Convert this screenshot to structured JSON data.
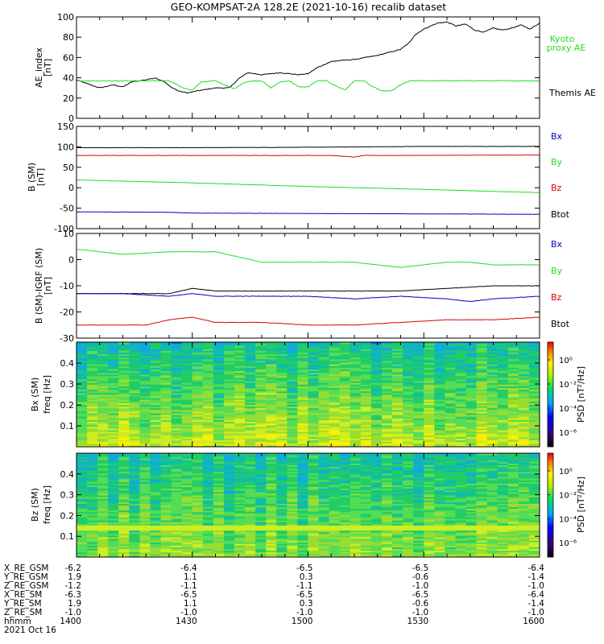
{
  "title": "GEO-KOMPSAT-2A 128.2E (2021-10-16) recalib dataset",
  "colors": {
    "black": "#000000",
    "green": "#22dd22",
    "red": "#dd0000",
    "blue": "#0000cc"
  },
  "chart_data": [
    {
      "type": "line",
      "ylabel": "AE_index",
      "yunit": "[nT]",
      "ylim": [
        0,
        100
      ],
      "yticks": [
        "0",
        "20",
        "40",
        "60",
        "80",
        "100"
      ],
      "legend": [
        {
          "label": "Kyoto",
          "color": "green"
        },
        {
          "label": "proxy AE",
          "color": "green"
        },
        {
          "label": "Themis AE",
          "color": "black"
        }
      ],
      "series": [
        {
          "name": "Themis AE",
          "color": "black",
          "x": [
            0,
            3,
            5,
            8,
            10,
            12,
            15,
            17,
            19,
            20,
            22,
            24,
            26,
            30,
            33,
            35,
            37,
            40,
            44,
            48,
            50,
            52,
            55,
            57,
            60,
            65,
            70,
            72,
            73,
            75,
            78,
            80,
            82,
            84,
            86,
            88,
            90,
            92,
            94,
            96,
            98,
            100
          ],
          "y": [
            38,
            33,
            30,
            33,
            31,
            36,
            38,
            40,
            36,
            32,
            27,
            25,
            27,
            30,
            30,
            39,
            45,
            43,
            45,
            43,
            44,
            50,
            56,
            57,
            58,
            62,
            68,
            75,
            82,
            88,
            94,
            95,
            91,
            93,
            87,
            85,
            89,
            87,
            89,
            92,
            88,
            94
          ]
        },
        {
          "name": "Kyoto proxy AE",
          "color": "green",
          "x": [
            0,
            20,
            23,
            25,
            27,
            30,
            32,
            34,
            36,
            38,
            40,
            42,
            44,
            46,
            48,
            50,
            52,
            54,
            56,
            58,
            60,
            62,
            64,
            66,
            68,
            70,
            72,
            75,
            78,
            80,
            85,
            90,
            95,
            100
          ],
          "y": [
            37,
            37,
            30,
            28,
            36,
            37,
            33,
            29,
            35,
            37,
            37,
            30,
            36,
            37,
            31,
            31,
            37,
            37,
            32,
            28,
            37,
            37,
            31,
            27,
            27,
            33,
            37,
            37,
            37,
            37,
            37,
            37,
            37,
            37
          ]
        }
      ]
    },
    {
      "type": "line",
      "ylabel": "B (SM)",
      "yunit": "[nT]",
      "ylim": [
        -100,
        150
      ],
      "yticks": [
        "-100",
        "-50",
        "0",
        "50",
        "100",
        "150"
      ],
      "legend": [
        {
          "label": "Bx",
          "color": "blue"
        },
        {
          "label": "By",
          "color": "green"
        },
        {
          "label": "Bz",
          "color": "red"
        },
        {
          "label": "Btot",
          "color": "black"
        }
      ],
      "series": [
        {
          "name": "Btot",
          "color": "black",
          "x": [
            0,
            25,
            50,
            75,
            100
          ],
          "y": [
            98,
            98,
            99,
            101,
            101
          ]
        },
        {
          "name": "Bz",
          "color": "red",
          "x": [
            0,
            40,
            55,
            60,
            62,
            70,
            100
          ],
          "y": [
            79,
            79,
            79,
            75,
            79,
            79,
            80
          ]
        },
        {
          "name": "By",
          "color": "green",
          "x": [
            0,
            25,
            50,
            75,
            100
          ],
          "y": [
            19,
            12,
            3,
            -4,
            -12
          ]
        },
        {
          "name": "Bx",
          "color": "blue",
          "x": [
            0,
            20,
            25,
            50,
            75,
            100
          ],
          "y": [
            -59,
            -60,
            -62,
            -63,
            -64,
            -65
          ]
        }
      ]
    },
    {
      "type": "line",
      "ylabel": "B (SM)-IGRF (SM)",
      "yunit": "[nT]",
      "ylim": [
        -30,
        10
      ],
      "yticks": [
        "-30",
        "-20",
        "-10",
        "0",
        "10"
      ],
      "legend": [
        {
          "label": "Bx",
          "color": "blue"
        },
        {
          "label": "By",
          "color": "green"
        },
        {
          "label": "Bz",
          "color": "red"
        },
        {
          "label": "Btot",
          "color": "black"
        }
      ],
      "series": [
        {
          "name": "By",
          "color": "green",
          "x": [
            0,
            10,
            20,
            30,
            35,
            40,
            45,
            50,
            55,
            60,
            65,
            70,
            75,
            80,
            85,
            90,
            100
          ],
          "y": [
            4,
            2,
            3,
            3,
            1,
            -1,
            -1,
            -1,
            -1,
            -1,
            -2,
            -3,
            -2,
            -1,
            -1,
            -2,
            -2
          ]
        },
        {
          "name": "Btot",
          "color": "black",
          "x": [
            0,
            10,
            15,
            20,
            25,
            30,
            40,
            50,
            60,
            70,
            80,
            90,
            100
          ],
          "y": [
            -13,
            -13,
            -13,
            -13,
            -11,
            -12,
            -12,
            -12,
            -12,
            -12,
            -11,
            -10,
            -10
          ]
        },
        {
          "name": "Bx",
          "color": "blue",
          "x": [
            0,
            10,
            20,
            25,
            30,
            40,
            50,
            60,
            70,
            80,
            85,
            90,
            100
          ],
          "y": [
            -13,
            -13,
            -14,
            -13,
            -14,
            -14,
            -14,
            -15,
            -14,
            -15,
            -16,
            -15,
            -14
          ]
        },
        {
          "name": "Bz",
          "color": "red",
          "x": [
            0,
            10,
            15,
            20,
            25,
            30,
            40,
            50,
            60,
            70,
            80,
            90,
            100
          ],
          "y": [
            -25,
            -25,
            -25,
            -23,
            -22,
            -24,
            -24,
            -25,
            -25,
            -24,
            -23,
            -23,
            -22
          ]
        }
      ]
    },
    {
      "type": "heatmap",
      "ylabel": "Bx (SM)",
      "yunit": "freq [Hz]",
      "ylim": [
        0,
        0.5
      ],
      "yticks": [
        "0.1",
        "0.2",
        "0.3",
        "0.4"
      ],
      "colorbar": {
        "label": "PSD [nT²/Hz]",
        "ticks": [
          "10⁰",
          "10⁻²",
          "10⁻⁴",
          "10⁻⁶"
        ]
      }
    },
    {
      "type": "heatmap",
      "ylabel": "Bz (SM)",
      "yunit": "freq [Hz]",
      "ylim": [
        0,
        0.5
      ],
      "yticks": [
        "0.1",
        "0.2",
        "0.3",
        "0.4"
      ],
      "colorbar": {
        "label": "PSD [nT²/Hz]",
        "ticks": [
          "10⁰",
          "10⁻²",
          "10⁻⁴",
          "10⁻⁶"
        ]
      }
    }
  ],
  "ephemeris": {
    "labels": [
      "X_RE_GSM",
      "Y_RE_GSM",
      "Z_RE_GSM",
      "X_RE_SM",
      "Y_RE_SM",
      "Z_RE_SM",
      "hhmm"
    ],
    "columns": [
      [
        "-6.2",
        "1.9",
        "-1.2",
        "-6.3",
        "1.9",
        "-1.0",
        "1400"
      ],
      [
        "-6.4",
        "1.1",
        "-1.1",
        "-6.5",
        "1.1",
        "-1.0",
        "1430"
      ],
      [
        "-6.5",
        "0.3",
        "-1.1",
        "-6.5",
        "0.3",
        "-1.0",
        "1500"
      ],
      [
        "-6.5",
        "-0.6",
        "-1.0",
        "-6.5",
        "-0.6",
        "-1.0",
        "1530"
      ],
      [
        "-6.4",
        "-1.4",
        "-1.0",
        "-6.4",
        "-1.4",
        "-1.0",
        "1600"
      ]
    ],
    "date": "2021 Oct 16"
  }
}
